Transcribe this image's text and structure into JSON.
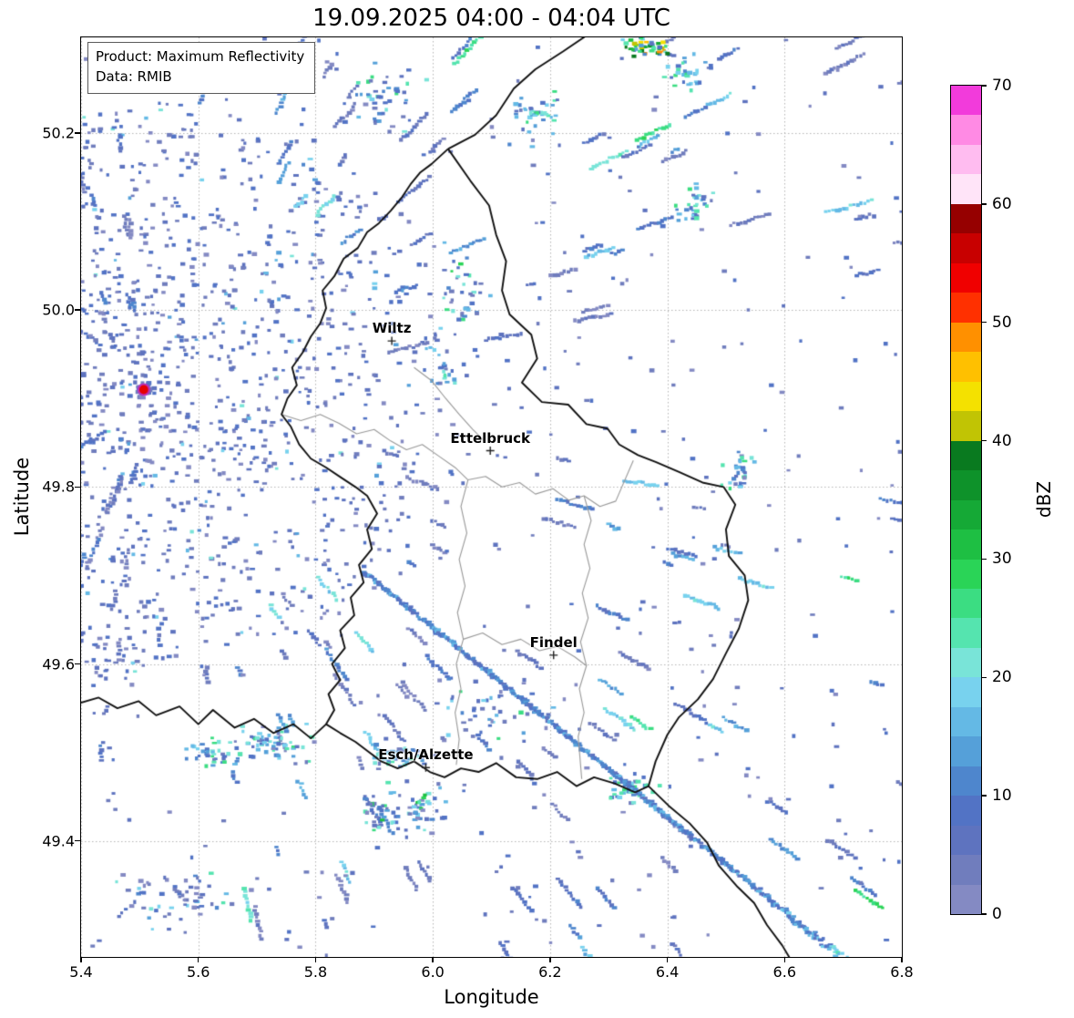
{
  "chart_data": {
    "type": "heatmap",
    "title": "19.09.2025 04:00 - 04:04 UTC",
    "xlabel": "Longitude",
    "ylabel": "Latitude",
    "xlim": [
      5.4,
      6.8
    ],
    "ylim": [
      49.269,
      50.308
    ],
    "xticks": [
      5.4,
      5.6,
      5.8,
      6.0,
      6.2,
      6.4,
      6.6,
      6.8
    ],
    "xtick_labels": [
      "5.4",
      "5.6",
      "5.8",
      "6.0",
      "6.2",
      "6.4",
      "6.6",
      "6.8"
    ],
    "yticks": [
      50.2,
      50.0,
      49.8,
      49.6,
      49.4
    ],
    "ytick_labels": [
      "50.2",
      "50.0",
      "49.8",
      "49.6",
      "49.4"
    ],
    "grid": true,
    "grid_color": "#b5b5b5",
    "annotations": {
      "product": "Product: Maximum Reflectivity",
      "data_source": "Data: RMIB"
    },
    "colorbar": {
      "label": "dBZ",
      "vmin": 0,
      "vmax": 70,
      "step": 2.5,
      "tick_values": [
        70,
        60,
        50,
        40,
        30,
        20,
        10,
        0
      ],
      "tick_labels": [
        "70",
        "60",
        "50",
        "40",
        "30",
        "20",
        "10",
        "0"
      ],
      "colors": [
        "#848ac3",
        "#707dbd",
        "#5e73bf",
        "#5273c5",
        "#4e86cd",
        "#55a0d9",
        "#64b9e5",
        "#78d2ee",
        "#79e4d8",
        "#55e4af",
        "#3bdd82",
        "#2ad457",
        "#1ebf43",
        "#15a936",
        "#0e922a",
        "#097a1f",
        "#c1c404",
        "#f4e100",
        "#ffc000",
        "#ff9000",
        "#ff3000",
        "#f00000",
        "#c80000",
        "#960000",
        "#ffe4f8",
        "#ffbcf0",
        "#ff8ae4",
        "#f23bdb"
      ]
    },
    "cities": [
      {
        "name": "Wiltz",
        "lon": 5.93,
        "lat": 49.965
      },
      {
        "name": "Ettelbruck",
        "lon": 6.098,
        "lat": 49.841
      },
      {
        "name": "Findel",
        "lon": 6.206,
        "lat": 49.61
      },
      {
        "name": "Esch/Alzette",
        "lon": 5.988,
        "lat": 49.483
      }
    ],
    "radar_site": {
      "lon": 5.507,
      "lat": 49.91,
      "fill": "#e60000",
      "edge": "#bb30bb"
    },
    "interference_spike": {
      "from": [
        5.879,
        49.706
      ],
      "to": [
        6.761,
        49.234
      ]
    },
    "borders": {
      "country": [
        [
          6.026,
          50.182
        ],
        [
          6.064,
          50.146
        ],
        [
          6.096,
          50.118
        ],
        [
          6.108,
          50.085
        ],
        [
          6.125,
          50.055
        ],
        [
          6.118,
          50.022
        ],
        [
          6.131,
          49.995
        ],
        [
          6.168,
          49.972
        ],
        [
          6.178,
          49.945
        ],
        [
          6.152,
          49.918
        ],
        [
          6.186,
          49.896
        ],
        [
          6.231,
          49.893
        ],
        [
          6.262,
          49.871
        ],
        [
          6.298,
          49.866
        ],
        [
          6.318,
          49.848
        ],
        [
          6.35,
          49.836
        ],
        [
          6.381,
          49.828
        ],
        [
          6.42,
          49.817
        ],
        [
          6.46,
          49.805
        ],
        [
          6.496,
          49.8
        ],
        [
          6.516,
          49.78
        ],
        [
          6.5,
          49.752
        ],
        [
          6.505,
          49.722
        ],
        [
          6.532,
          49.7
        ],
        [
          6.538,
          49.672
        ],
        [
          6.522,
          49.64
        ],
        [
          6.5,
          49.612
        ],
        [
          6.478,
          49.583
        ],
        [
          6.452,
          49.56
        ],
        [
          6.42,
          49.54
        ],
        [
          6.4,
          49.52
        ],
        [
          6.38,
          49.49
        ],
        [
          6.368,
          49.462
        ],
        [
          6.345,
          49.455
        ],
        [
          6.31,
          49.465
        ],
        [
          6.275,
          49.472
        ],
        [
          6.245,
          49.462
        ],
        [
          6.212,
          49.478
        ],
        [
          6.178,
          49.47
        ],
        [
          6.142,
          49.472
        ],
        [
          6.108,
          49.488
        ],
        [
          6.078,
          49.478
        ],
        [
          6.048,
          49.482
        ],
        [
          6.02,
          49.472
        ],
        [
          5.995,
          49.478
        ],
        [
          5.968,
          49.49
        ],
        [
          5.94,
          49.482
        ],
        [
          5.912,
          49.49
        ],
        [
          5.888,
          49.502
        ],
        [
          5.868,
          49.512
        ],
        [
          5.842,
          49.522
        ],
        [
          5.818,
          49.532
        ],
        [
          5.832,
          49.548
        ],
        [
          5.822,
          49.566
        ],
        [
          5.842,
          49.582
        ],
        [
          5.828,
          49.6
        ],
        [
          5.85,
          49.618
        ],
        [
          5.842,
          49.638
        ],
        [
          5.866,
          49.655
        ],
        [
          5.86,
          49.675
        ],
        [
          5.882,
          49.692
        ],
        [
          5.874,
          49.712
        ],
        [
          5.896,
          49.73
        ],
        [
          5.888,
          49.752
        ],
        [
          5.905,
          49.77
        ],
        [
          5.888,
          49.79
        ],
        [
          5.868,
          49.8
        ],
        [
          5.845,
          49.81
        ],
        [
          5.818,
          49.822
        ],
        [
          5.792,
          49.832
        ],
        [
          5.772,
          49.848
        ],
        [
          5.758,
          49.868
        ],
        [
          5.742,
          49.882
        ],
        [
          5.752,
          49.9
        ],
        [
          5.768,
          49.915
        ],
        [
          5.76,
          49.935
        ],
        [
          5.778,
          49.952
        ],
        [
          5.792,
          49.97
        ],
        [
          5.808,
          49.985
        ],
        [
          5.818,
          50.002
        ],
        [
          5.812,
          50.022
        ],
        [
          5.832,
          50.038
        ],
        [
          5.848,
          50.058
        ],
        [
          5.872,
          50.07
        ],
        [
          5.888,
          50.088
        ],
        [
          5.908,
          50.098
        ],
        [
          5.928,
          50.112
        ],
        [
          5.948,
          50.128
        ],
        [
          5.962,
          50.142
        ],
        [
          5.978,
          50.155
        ],
        [
          5.998,
          50.165
        ],
        [
          6.026,
          50.182
        ]
      ],
      "neighbors": [
        [
          [
            6.026,
            50.182
          ],
          [
            6.072,
            50.198
          ],
          [
            6.108,
            50.22
          ],
          [
            6.138,
            50.25
          ],
          [
            6.175,
            50.272
          ],
          [
            6.222,
            50.292
          ],
          [
            6.262,
            50.31
          ]
        ],
        [
          [
            5.818,
            49.532
          ],
          [
            5.792,
            49.516
          ],
          [
            5.762,
            49.532
          ],
          [
            5.728,
            49.522
          ],
          [
            5.695,
            49.538
          ],
          [
            5.662,
            49.528
          ],
          [
            5.625,
            49.548
          ],
          [
            5.6,
            49.532
          ],
          [
            5.568,
            49.552
          ],
          [
            5.528,
            49.542
          ],
          [
            5.498,
            49.558
          ],
          [
            5.462,
            49.55
          ],
          [
            5.43,
            49.562
          ],
          [
            5.398,
            49.556
          ]
        ],
        [
          [
            6.368,
            49.462
          ],
          [
            6.402,
            49.44
          ],
          [
            6.438,
            49.42
          ],
          [
            6.468,
            49.398
          ],
          [
            6.488,
            49.372
          ],
          [
            6.52,
            49.348
          ],
          [
            6.548,
            49.33
          ],
          [
            6.57,
            49.305
          ],
          [
            6.596,
            49.282
          ],
          [
            6.614,
            49.262
          ]
        ]
      ],
      "internal": [
        [
          [
            5.742,
            49.882
          ],
          [
            5.775,
            49.875
          ],
          [
            5.808,
            49.882
          ],
          [
            5.84,
            49.872
          ],
          [
            5.87,
            49.86
          ],
          [
            5.9,
            49.865
          ],
          [
            5.928,
            49.852
          ],
          [
            5.955,
            49.842
          ],
          [
            5.982,
            49.848
          ],
          [
            6.01,
            49.835
          ],
          [
            6.038,
            49.822
          ],
          [
            6.06,
            49.808
          ]
        ],
        [
          [
            6.06,
            49.808
          ],
          [
            6.09,
            49.812
          ],
          [
            6.118,
            49.8
          ],
          [
            6.148,
            49.805
          ],
          [
            6.175,
            49.792
          ],
          [
            6.205,
            49.798
          ],
          [
            6.232,
            49.785
          ],
          [
            6.258,
            49.79
          ],
          [
            6.285,
            49.778
          ],
          [
            6.312,
            49.784
          ],
          [
            6.342,
            49.83
          ]
        ],
        [
          [
            6.06,
            49.808
          ],
          [
            6.048,
            49.778
          ],
          [
            6.058,
            49.748
          ],
          [
            6.045,
            49.718
          ],
          [
            6.055,
            49.688
          ],
          [
            6.042,
            49.658
          ],
          [
            6.052,
            49.628
          ],
          [
            6.04,
            49.6
          ],
          [
            6.048,
            49.572
          ],
          [
            6.038,
            49.545
          ],
          [
            6.045,
            49.515
          ],
          [
            6.04,
            49.486
          ]
        ],
        [
          [
            6.258,
            49.79
          ],
          [
            6.27,
            49.762
          ],
          [
            6.258,
            49.735
          ],
          [
            6.268,
            49.708
          ],
          [
            6.255,
            49.68
          ],
          [
            6.265,
            49.652
          ],
          [
            6.252,
            49.625
          ],
          [
            6.262,
            49.598
          ],
          [
            6.25,
            49.572
          ],
          [
            6.258,
            49.545
          ],
          [
            6.248,
            49.518
          ],
          [
            6.254,
            49.47
          ]
        ],
        [
          [
            6.052,
            49.628
          ],
          [
            6.085,
            49.635
          ],
          [
            6.118,
            49.622
          ],
          [
            6.15,
            49.628
          ],
          [
            6.182,
            49.615
          ],
          [
            6.212,
            49.62
          ],
          [
            6.242,
            49.608
          ],
          [
            6.262,
            49.598
          ]
        ],
        [
          [
            5.968,
            49.935
          ],
          [
            5.998,
            49.92
          ],
          [
            6.022,
            49.9
          ],
          [
            6.045,
            49.882
          ],
          [
            6.068,
            49.865
          ],
          [
            6.088,
            49.852
          ]
        ]
      ]
    },
    "echo_field": {
      "seed": 90419,
      "radial": {
        "center": [
          5.507,
          49.91
        ],
        "count": 1400,
        "max_r": 330,
        "ring_spacing": 9
      },
      "streak_sets": [
        {
          "angle_range": [
            8,
            85
          ],
          "count": 150,
          "r_range": [
            260,
            1150
          ],
          "len_range": [
            10,
            55
          ],
          "dbz": "mixlow"
        },
        {
          "angle_range": [
            -80,
            -8
          ],
          "count": 120,
          "r_range": [
            260,
            1050
          ],
          "len_range": [
            10,
            45
          ],
          "dbz": "mixlow"
        },
        {
          "angle_range": [
            95,
            175
          ],
          "count": 55,
          "r_range": [
            60,
            330
          ],
          "len_range": [
            8,
            26
          ],
          "dbz": "low"
        },
        {
          "angle_range": [
            -170,
            -95
          ],
          "count": 65,
          "r_range": [
            60,
            390
          ],
          "len_range": [
            8,
            26
          ],
          "dbz": "low"
        }
      ],
      "blobs": [
        {
          "center": [
            6.355,
            50.298
          ],
          "sx": 30,
          "sy": 14,
          "count": 50,
          "dbz": "hot"
        },
        {
          "center": [
            6.43,
            50.27
          ],
          "sx": 20,
          "sy": 18,
          "count": 30,
          "dbz": "green"
        },
        {
          "center": [
            6.18,
            50.22
          ],
          "sx": 28,
          "sy": 30,
          "count": 40,
          "dbz": "green"
        },
        {
          "center": [
            6.45,
            50.12
          ],
          "sx": 22,
          "sy": 22,
          "count": 32,
          "dbz": "green"
        },
        {
          "center": [
            6.52,
            49.82
          ],
          "sx": 16,
          "sy": 22,
          "count": 28,
          "dbz": "green"
        },
        {
          "center": [
            5.92,
            50.24
          ],
          "sx": 35,
          "sy": 33,
          "count": 45,
          "dbz": "mix"
        },
        {
          "center": [
            6.05,
            50.02
          ],
          "sx": 30,
          "sy": 40,
          "count": 40,
          "dbz": "mix"
        },
        {
          "center": [
            6.02,
            49.93
          ],
          "sx": 16,
          "sy": 13,
          "count": 16,
          "dbz": "green"
        },
        {
          "center": [
            5.72,
            49.515
          ],
          "sx": 40,
          "sy": 20,
          "count": 60,
          "dbz": "green"
        },
        {
          "center": [
            5.62,
            49.5
          ],
          "sx": 28,
          "sy": 16,
          "count": 40,
          "dbz": "green"
        },
        {
          "center": [
            5.93,
            49.5
          ],
          "sx": 22,
          "sy": 14,
          "count": 30,
          "dbz": "green"
        },
        {
          "center": [
            5.95,
            49.44
          ],
          "sx": 55,
          "sy": 28,
          "count": 70,
          "dbz": "mix"
        },
        {
          "center": [
            6.33,
            49.46
          ],
          "sx": 26,
          "sy": 20,
          "count": 40,
          "dbz": "green"
        },
        {
          "center": [
            5.55,
            49.34
          ],
          "sx": 70,
          "sy": 34,
          "count": 60,
          "dbz": "mixlow"
        },
        {
          "center": [
            6.1,
            49.55
          ],
          "sx": 60,
          "sy": 34,
          "count": 50,
          "dbz": "mixlow"
        },
        {
          "center": [
            5.48,
            49.62
          ],
          "sx": 50,
          "sy": 40,
          "count": 35,
          "dbz": "low"
        }
      ],
      "scatter": {
        "count": 420,
        "dbz": "low"
      }
    }
  }
}
